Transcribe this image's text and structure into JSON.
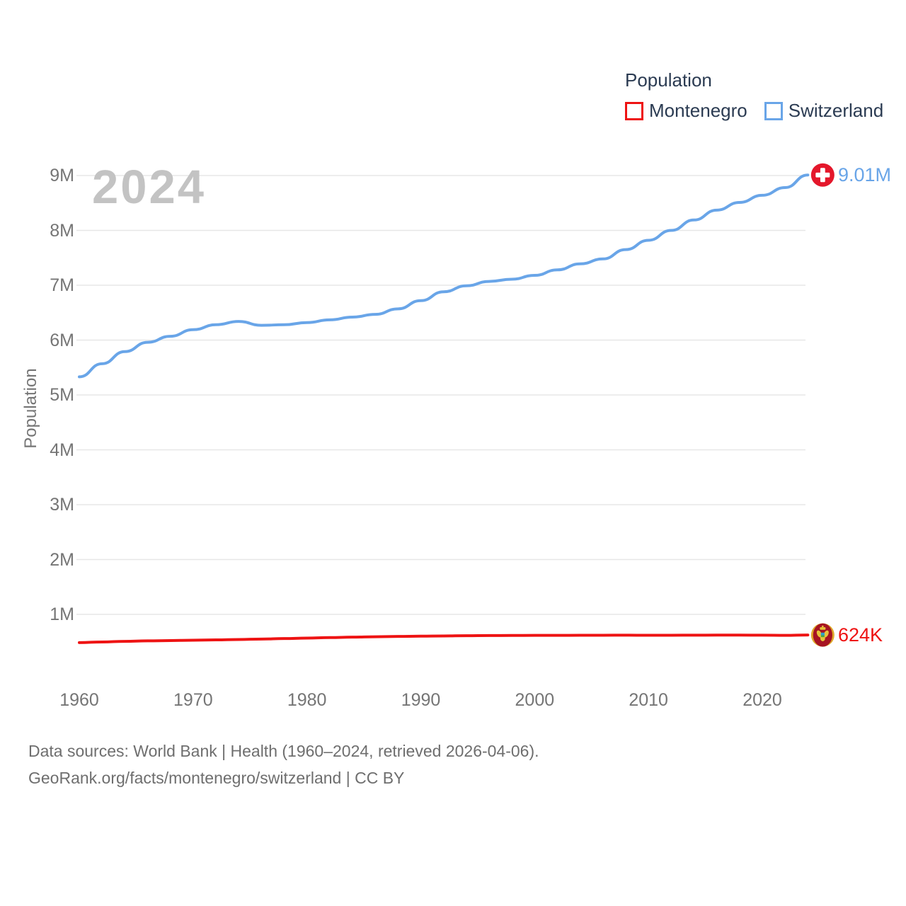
{
  "legend": {
    "title": "Population",
    "items": [
      {
        "label": "Montenegro",
        "color": "#ee1313"
      },
      {
        "label": "Switzerland",
        "color": "#69a5e8"
      }
    ]
  },
  "watermark": "2024",
  "y_axis": {
    "title": "Population",
    "tick_labels": [
      "1M",
      "2M",
      "3M",
      "4M",
      "5M",
      "6M",
      "7M",
      "8M",
      "9M"
    ]
  },
  "x_axis": {
    "tick_labels": [
      "1960",
      "1970",
      "1980",
      "1990",
      "2000",
      "2010",
      "2020"
    ]
  },
  "end_markers": {
    "montenegro": {
      "label": "624K",
      "color": "#ee1313",
      "flag": "montenegro-flag-icon"
    },
    "switzerland": {
      "label": "9.01M",
      "color": "#69a5e8",
      "flag": "switzerland-flag-icon"
    }
  },
  "footer": {
    "line1": "Data sources: World Bank | Health (1960–2024, retrieved 2026-04-06).",
    "line2": "GeoRank.org/facts/montenegro/switzerland | CC BY"
  },
  "chart_data": {
    "type": "line",
    "title": "Population",
    "xlabel": "",
    "ylabel": "Population",
    "grid": "horizontal-only",
    "legend_position": "top-right",
    "xlim_years": [
      1960,
      2024
    ],
    "ylim_millions": [
      0,
      9.3
    ],
    "x_tick_years": [
      1960,
      1970,
      1980,
      1990,
      2000,
      2010,
      2020
    ],
    "y_tick_values_millions": [
      1,
      2,
      3,
      4,
      5,
      6,
      7,
      8,
      9
    ],
    "x_years": [
      1960,
      1962,
      1964,
      1966,
      1968,
      1970,
      1972,
      1974,
      1976,
      1978,
      1980,
      1982,
      1984,
      1986,
      1988,
      1990,
      1992,
      1994,
      1996,
      1998,
      2000,
      2002,
      2004,
      2006,
      2008,
      2010,
      2012,
      2014,
      2016,
      2018,
      2020,
      2022,
      2024
    ],
    "series": [
      {
        "name": "Montenegro",
        "color": "#ee1313",
        "end_label": "624K",
        "end_value": 624000,
        "values_millions": [
          0.486,
          0.497,
          0.508,
          0.517,
          0.523,
          0.529,
          0.535,
          0.542,
          0.55,
          0.559,
          0.568,
          0.577,
          0.585,
          0.592,
          0.598,
          0.603,
          0.607,
          0.611,
          0.614,
          0.616,
          0.617,
          0.618,
          0.619,
          0.62,
          0.621,
          0.619,
          0.62,
          0.621,
          0.622,
          0.622,
          0.621,
          0.617,
          0.624
        ]
      },
      {
        "name": "Switzerland",
        "color": "#69a5e8",
        "end_label": "9.01M",
        "end_value": 9010000,
        "values_millions": [
          5.33,
          5.57,
          5.79,
          5.96,
          6.07,
          6.19,
          6.28,
          6.34,
          6.27,
          6.28,
          6.32,
          6.37,
          6.42,
          6.47,
          6.57,
          6.72,
          6.88,
          6.99,
          7.07,
          7.11,
          7.18,
          7.28,
          7.39,
          7.48,
          7.65,
          7.82,
          8.0,
          8.19,
          8.37,
          8.51,
          8.64,
          8.78,
          9.01
        ]
      }
    ]
  }
}
